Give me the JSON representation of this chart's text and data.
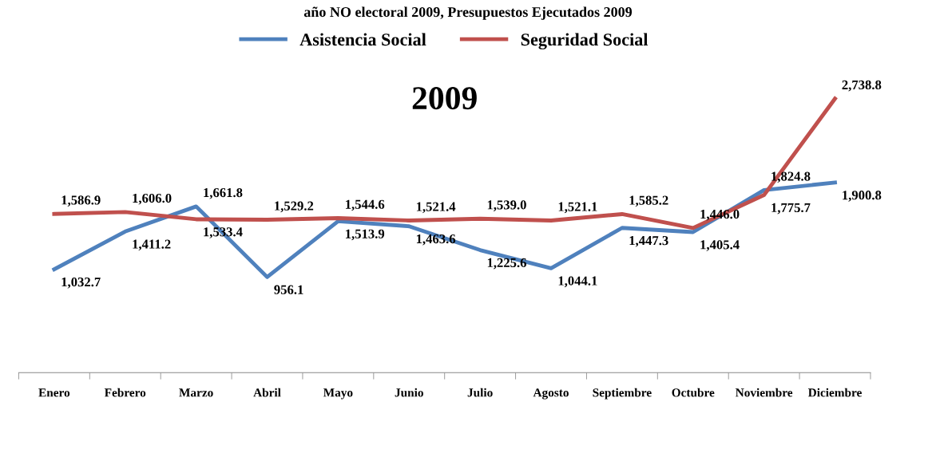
{
  "chart_data": {
    "type": "line",
    "title": "año NO electoral 2009, Presupuestos Ejecutados 2009",
    "subtitle": "2009",
    "categories": [
      "Enero",
      "Febrero",
      "Marzo",
      "Abril",
      "Mayo",
      "Junio",
      "Julio",
      "Agosto",
      "Septiembre",
      "Octubre",
      "Noviembre",
      "Diciembre"
    ],
    "series": [
      {
        "name": "Asistencia Social",
        "color": "#4f81bd",
        "values": [
          1032.7,
          1411.2,
          1661.8,
          956.1,
          1513.9,
          1463.6,
          1225.6,
          1044.1,
          1447.3,
          1405.4,
          1824.8,
          1900.8
        ],
        "value_labels": [
          "1,032.7",
          "1,411.2",
          "1,661.8",
          "956.1",
          "1,513.9",
          "1,463.6",
          "1,225.6",
          "1,044.1",
          "1,447.3",
          "1,405.4",
          "1,824.8",
          "1,900.8"
        ]
      },
      {
        "name": "Seguridad Social",
        "color": "#c0504d",
        "values": [
          1586.9,
          1606.0,
          1533.4,
          1529.2,
          1544.6,
          1521.4,
          1539.0,
          1521.1,
          1585.2,
          1446.0,
          1775.7,
          2738.8
        ],
        "value_labels": [
          "1,586.9",
          "1,606.0",
          "1,533.4",
          "1,529.2",
          "1,544.6",
          "1,521.4",
          "1,539.0",
          "1,521.1",
          "1,585.2",
          "1,446.0",
          "1,775.7",
          "2,738.8"
        ]
      }
    ],
    "tick_labels": "x",
    "legend": "top",
    "grid": false,
    "marker": "none",
    "line_style": "solid"
  }
}
